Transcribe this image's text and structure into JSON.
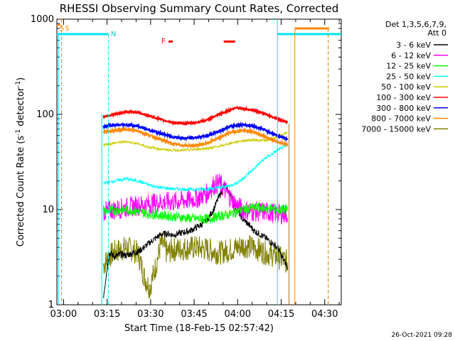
{
  "chart_data": {
    "type": "line",
    "title": "RHESSI Observing Summary Count Rates, Corrected",
    "xlabel": "Start Time (18-Feb-15 02:57:42)",
    "ylabel_main": "Corrected Count Rate (s",
    "ylabel_sup1": "-1",
    "ylabel_mid": " detector",
    "ylabel_sup2": "-1",
    "ylabel_end": ")",
    "y_scale": "log",
    "ylim": [
      1,
      1000
    ],
    "x_range_minutes": [
      0,
      98
    ],
    "x_ticks": [
      {
        "label": "03:00",
        "minute": 2.3
      },
      {
        "label": "03:15",
        "minute": 17.3
      },
      {
        "label": "03:30",
        "minute": 32.3
      },
      {
        "label": "03:45",
        "minute": 47.3
      },
      {
        "label": "04:00",
        "minute": 62.3
      },
      {
        "label": "04:15",
        "minute": 77.3
      },
      {
        "label": "04:30",
        "minute": 92.3
      }
    ],
    "y_ticks": [
      {
        "label": "1000",
        "value": 1000
      },
      {
        "label": "100",
        "value": 100
      },
      {
        "label": "10",
        "value": 10
      },
      {
        "label": "1",
        "value": 1
      }
    ],
    "legend_header": [
      "Det 1,3,5,6,7,9,",
      "Att 0"
    ],
    "legend_position": "right",
    "series": [
      {
        "name": "3 - 6 keV",
        "color": "#000000",
        "x": [
          16,
          18,
          20,
          22,
          24,
          26,
          28,
          30,
          32,
          34,
          36,
          38,
          40,
          42,
          44,
          46,
          48,
          50,
          52,
          54,
          56,
          58,
          60,
          62,
          64,
          66,
          68,
          70,
          72,
          74,
          76,
          78,
          79.5
        ],
        "y": [
          1.2,
          3.5,
          3.2,
          3.4,
          3.3,
          3.5,
          3.6,
          4.0,
          4.5,
          5.0,
          5.5,
          5.6,
          5.4,
          5.6,
          5.8,
          6.0,
          6.5,
          7,
          8,
          10,
          14,
          18,
          14,
          10,
          8,
          7,
          6,
          5.5,
          5,
          4.5,
          4,
          3,
          2.5
        ]
      },
      {
        "name": "6 - 12 keV",
        "color": "#ff00ff",
        "x": [
          16,
          20,
          24,
          28,
          32,
          36,
          40,
          44,
          48,
          52,
          54,
          56,
          58,
          60,
          62,
          64,
          68,
          72,
          76,
          79.5
        ],
        "y": [
          9.5,
          10,
          10.5,
          11,
          11.5,
          12,
          12,
          12.5,
          13,
          15,
          18,
          19,
          16,
          13,
          11,
          10,
          9.5,
          9.5,
          9,
          9
        ]
      },
      {
        "name": "12 - 25 keV",
        "color": "#00ff00",
        "x": [
          16,
          20,
          24,
          28,
          32,
          36,
          40,
          44,
          48,
          52,
          56,
          60,
          64,
          68,
          72,
          76,
          79.5
        ],
        "y": [
          9.5,
          9.8,
          10,
          9.5,
          9,
          8.7,
          8.5,
          8.2,
          8,
          8,
          8.5,
          9,
          10,
          10.5,
          10.3,
          10,
          10
        ]
      },
      {
        "name": "25 - 50 keV",
        "color": "#00ffff",
        "x": [
          16,
          20,
          24,
          28,
          32,
          36,
          40,
          44,
          48,
          52,
          56,
          60,
          62,
          64,
          66,
          68,
          70,
          72,
          74,
          76,
          78,
          79.5
        ],
        "y": [
          19,
          20,
          21,
          20,
          18,
          17,
          16.5,
          16.3,
          16.3,
          16.5,
          17,
          18,
          19,
          21,
          24,
          27,
          31,
          35,
          38,
          42,
          45,
          47
        ]
      },
      {
        "name": "50 - 100 keV",
        "color": "#cccc00",
        "x": [
          16,
          20,
          24,
          28,
          32,
          36,
          40,
          44,
          48,
          52,
          56,
          60,
          64,
          68,
          72,
          76,
          79.5
        ],
        "y": [
          48,
          50,
          52,
          49,
          45,
          43,
          42,
          42,
          43,
          44,
          46,
          50,
          53,
          54,
          53,
          58,
          65
        ]
      },
      {
        "name": "100 - 300 keV",
        "color": "#ff0000",
        "x": [
          16,
          20,
          24,
          28,
          32,
          36,
          40,
          44,
          48,
          52,
          56,
          60,
          62,
          64,
          68,
          72,
          76,
          79.5
        ],
        "y": [
          95,
          100,
          107,
          105,
          96,
          88,
          82,
          80,
          82,
          88,
          100,
          112,
          118,
          115,
          110,
          100,
          90,
          82
        ]
      },
      {
        "name": "300 - 800 keV",
        "color": "#0000ff",
        "x": [
          16,
          20,
          24,
          28,
          32,
          36,
          40,
          44,
          48,
          52,
          56,
          60,
          64,
          68,
          72,
          76,
          79.5
        ],
        "y": [
          75,
          77,
          78,
          75,
          68,
          63,
          58,
          56,
          57,
          60,
          67,
          75,
          78,
          75,
          68,
          60,
          55
        ]
      },
      {
        "name": "800 - 7000 keV",
        "color": "#ff8800",
        "x": [
          16,
          20,
          24,
          28,
          32,
          36,
          40,
          44,
          48,
          52,
          56,
          60,
          64,
          68,
          72,
          76,
          79.5
        ],
        "y": [
          65,
          68,
          70,
          67,
          60,
          54,
          49,
          47,
          47,
          50,
          57,
          65,
          68,
          65,
          58,
          52,
          48
        ]
      },
      {
        "name": "7000 - 15000 keV",
        "color": "#808000",
        "x": [
          16,
          18,
          20,
          24,
          28,
          30,
          32,
          34,
          36,
          38,
          40,
          44,
          48,
          52,
          56,
          60,
          64,
          68,
          72,
          76,
          79.5
        ],
        "y": [
          2.6,
          3.2,
          3.6,
          4.0,
          3.5,
          2.0,
          1.5,
          2.5,
          4.5,
          3.5,
          3.8,
          3.9,
          4.0,
          3.8,
          3.5,
          3.8,
          4.2,
          4.0,
          3.5,
          3.2,
          2.8
        ]
      }
    ],
    "annotations": {
      "ss_label": "S",
      "n_label": "N",
      "f_label": "F"
    }
  },
  "footer_timestamp": "26-Oct-2021 09:28"
}
